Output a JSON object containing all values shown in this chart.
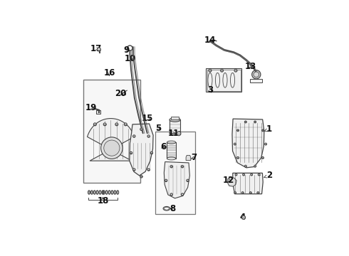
{
  "bg_color": "#ffffff",
  "line_color": "#444444",
  "fill_light": "#f0f0f0",
  "fill_mid": "#e0e0e0",
  "fill_gray": "#d8d8d8",
  "label_fs": 8.5,
  "bold_fs": 9.5,
  "label_positions": {
    "1": [
      0.955,
      0.535,
      0.94,
      0.51
    ],
    "2": [
      0.955,
      0.76,
      0.94,
      0.74
    ],
    "3": [
      0.66,
      0.31,
      0.68,
      0.295
    ],
    "4": [
      0.82,
      0.95,
      0.8,
      0.95
    ],
    "5": [
      0.388,
      0.53,
      0.395,
      0.51
    ],
    "6": [
      0.558,
      0.595,
      0.575,
      0.595
    ],
    "7": [
      0.575,
      0.65,
      0.59,
      0.65
    ],
    "8": [
      0.53,
      0.905,
      0.545,
      0.905
    ],
    "9": [
      0.265,
      0.1,
      0.28,
      0.1
    ],
    "10": [
      0.295,
      0.155,
      0.313,
      0.155
    ],
    "11": [
      0.515,
      0.52,
      0.53,
      0.52
    ],
    "12": [
      0.76,
      0.78,
      0.775,
      0.78
    ],
    "13": [
      0.905,
      0.175,
      0.888,
      0.175
    ],
    "14": [
      0.68,
      0.068,
      0.695,
      0.055
    ],
    "15": [
      0.345,
      0.455,
      0.36,
      0.44
    ],
    "16": [
      0.145,
      0.215,
      0.155,
      0.2
    ],
    "17": [
      0.145,
      0.092,
      0.158,
      0.092
    ],
    "18": [
      0.12,
      0.85,
      0.128,
      0.87
    ],
    "19": [
      0.085,
      0.395,
      0.1,
      0.395
    ],
    "20": [
      0.218,
      0.318,
      0.205,
      0.318
    ]
  }
}
